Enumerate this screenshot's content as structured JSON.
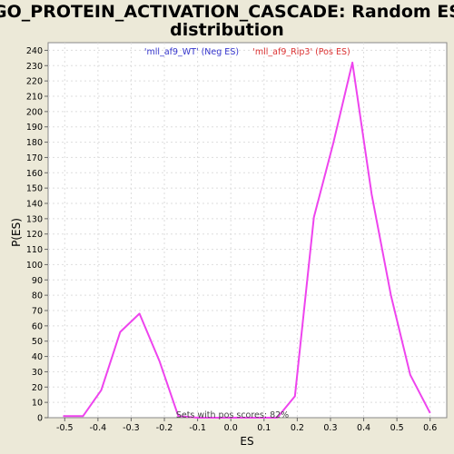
{
  "chart_data": {
    "type": "line",
    "title_line1": "GO_PROTEIN_ACTIVATION_CASCADE: Random ES",
    "title_line2": "distribution",
    "xlabel": "ES",
    "ylabel": "P(ES)",
    "xlim": [
      -0.55,
      0.65
    ],
    "ylim": [
      0,
      245
    ],
    "xticks": [
      -0.5,
      -0.4,
      -0.3,
      -0.2,
      -0.1,
      0.0,
      0.1,
      0.2,
      0.3,
      0.4,
      0.5,
      0.6
    ],
    "xtick_labels": [
      "-0.5",
      "-0.4",
      "-0.3",
      "-0.2",
      "-0.1",
      "0.0",
      "0.1",
      "0.2",
      "0.3",
      "0.4",
      "0.5",
      "0.6"
    ],
    "yticks": [
      0,
      10,
      20,
      30,
      40,
      50,
      60,
      70,
      80,
      90,
      100,
      110,
      120,
      130,
      140,
      150,
      160,
      170,
      180,
      190,
      200,
      210,
      220,
      230,
      240
    ],
    "grid": true,
    "legend_position": "top-center",
    "series": [
      {
        "name": "'mll_af9_WT' (Neg ES)",
        "color": "#3333cc",
        "x": [],
        "y": []
      },
      {
        "name": "'mll_af9_Rip3' (Pos ES)",
        "color": "#dd3333",
        "line_color": "#ee44ee",
        "x": [
          -0.505,
          -0.445,
          -0.39,
          -0.333,
          -0.275,
          -0.215,
          -0.158,
          -0.1,
          -0.04,
          0.02,
          0.08,
          0.14,
          0.193,
          0.25,
          0.308,
          0.366,
          0.424,
          0.482,
          0.54,
          0.6
        ],
        "y": [
          1,
          1,
          18,
          56,
          68,
          37,
          1,
          0,
          0,
          0,
          0,
          0,
          14,
          131,
          179,
          232,
          146,
          80,
          28,
          3
        ]
      }
    ],
    "annotation": "Sets with pos scores: 82%"
  }
}
